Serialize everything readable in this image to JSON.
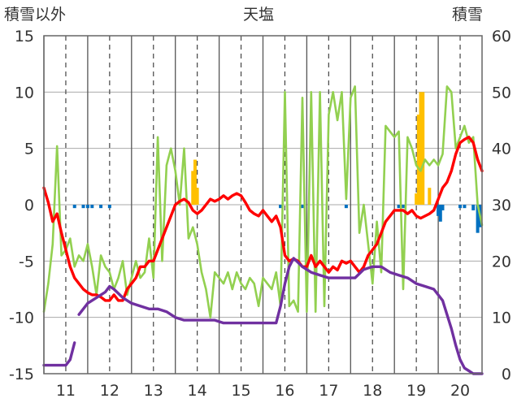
{
  "chart_data": {
    "type": "line",
    "title": "天塩",
    "ylabel_left": "積雪以外",
    "ylabel_right": "積雪",
    "y_left_lim": [
      -15,
      15
    ],
    "y_left_ticks": [
      15,
      10,
      5,
      0,
      -5,
      -10,
      -15
    ],
    "y_right_lim": [
      0,
      60
    ],
    "y_right_ticks": [
      60,
      50,
      40,
      30,
      20,
      10,
      0
    ],
    "x_lim": [
      10.5,
      20.5
    ],
    "x_ticks": [
      11,
      12,
      13,
      14,
      15,
      16,
      17,
      18,
      19,
      20
    ],
    "grid": true,
    "colors": {
      "temperature": "#ff0000",
      "humidity_like": "#92d050",
      "snow_depth": "#7030a0",
      "precip_positive": "#ffc000",
      "precip_negative": "#0070c0",
      "grid_solid": "#555555",
      "grid_dashed": "#444444"
    },
    "series": [
      {
        "axis": "left",
        "color": "#ff0000",
        "x": [
          10.5,
          10.6,
          10.7,
          10.8,
          10.9,
          11.0,
          11.1,
          11.2,
          11.3,
          11.4,
          11.5,
          11.6,
          11.7,
          11.8,
          11.9,
          12.0,
          12.1,
          12.2,
          12.3,
          12.4,
          12.5,
          12.6,
          12.7,
          12.8,
          12.9,
          13.0,
          13.1,
          13.2,
          13.3,
          13.4,
          13.5,
          13.6,
          13.7,
          13.8,
          13.9,
          14.0,
          14.1,
          14.2,
          14.3,
          14.4,
          14.5,
          14.6,
          14.7,
          14.8,
          14.9,
          15.0,
          15.1,
          15.2,
          15.3,
          15.4,
          15.5,
          15.6,
          15.7,
          15.8,
          15.9,
          16.0,
          16.1,
          16.2,
          16.3,
          16.4,
          16.5,
          16.6,
          16.7,
          16.8,
          16.9,
          17.0,
          17.1,
          17.2,
          17.3,
          17.4,
          17.5,
          17.6,
          17.7,
          17.8,
          17.9,
          18.0,
          18.1,
          18.2,
          18.3,
          18.4,
          18.5,
          18.6,
          18.7,
          18.8,
          18.9,
          19.0,
          19.1,
          19.2,
          19.3,
          19.4,
          19.5,
          19.6,
          19.7,
          19.8,
          19.9,
          20.0,
          20.1,
          20.2,
          20.3,
          20.4,
          20.5
        ],
        "y": [
          1.5,
          0.2,
          -1.5,
          -0.8,
          -2.5,
          -4.0,
          -5.5,
          -6.5,
          -7.0,
          -7.5,
          -7.8,
          -8.0,
          -8.0,
          -8.2,
          -8.5,
          -8.5,
          -8.0,
          -8.5,
          -8.5,
          -7.5,
          -7.0,
          -6.5,
          -5.5,
          -5.5,
          -5.0,
          -5.0,
          -4.0,
          -3.0,
          -2.0,
          -1.0,
          0.0,
          0.3,
          0.5,
          0.2,
          -0.5,
          -0.8,
          -0.5,
          0.0,
          0.5,
          0.3,
          0.5,
          0.8,
          0.5,
          0.8,
          1.0,
          0.8,
          0.2,
          -0.5,
          -0.8,
          -1.0,
          -0.5,
          -1.0,
          -1.5,
          -1.0,
          -2.0,
          -4.5,
          -5.0,
          -4.8,
          -5.0,
          -5.5,
          -5.5,
          -4.5,
          -5.5,
          -5.0,
          -5.5,
          -6.0,
          -5.5,
          -5.8,
          -5.0,
          -5.2,
          -5.0,
          -5.5,
          -6.0,
          -5.5,
          -4.5,
          -4.0,
          -3.5,
          -2.5,
          -1.5,
          -1.0,
          -0.5,
          -0.5,
          -0.5,
          -0.8,
          -0.5,
          -1.0,
          -1.2,
          -1.0,
          -0.8,
          -0.5,
          0.5,
          1.5,
          2.0,
          3.0,
          4.5,
          5.5,
          5.8,
          6.0,
          5.5,
          4.0,
          3.0
        ]
      },
      {
        "axis": "left",
        "color": "#92d050",
        "x": [
          10.5,
          10.6,
          10.7,
          10.8,
          10.9,
          11.0,
          11.1,
          11.2,
          11.3,
          11.4,
          11.5,
          11.6,
          11.7,
          11.8,
          11.9,
          12.0,
          12.1,
          12.2,
          12.3,
          12.4,
          12.5,
          12.6,
          12.7,
          12.8,
          12.9,
          13.0,
          13.1,
          13.2,
          13.3,
          13.4,
          13.5,
          13.6,
          13.7,
          13.8,
          13.9,
          14.0,
          14.1,
          14.2,
          14.3,
          14.4,
          14.5,
          14.6,
          14.7,
          14.8,
          14.9,
          15.0,
          15.1,
          15.2,
          15.3,
          15.4,
          15.5,
          15.6,
          15.7,
          15.8,
          15.9,
          16.0,
          16.1,
          16.2,
          16.3,
          16.4,
          16.5,
          16.6,
          16.7,
          16.8,
          16.9,
          17.0,
          17.1,
          17.2,
          17.3,
          17.4,
          17.5,
          17.6,
          17.7,
          17.8,
          17.9,
          18.0,
          18.1,
          18.2,
          18.3,
          18.4,
          18.5,
          18.6,
          18.7,
          18.8,
          18.9,
          19.0,
          19.1,
          19.2,
          19.3,
          19.4,
          19.5,
          19.6,
          19.7,
          19.8,
          19.9,
          20.0,
          20.1,
          20.2,
          20.3,
          20.4,
          20.5
        ],
        "y": [
          -9.5,
          -7.0,
          -3.5,
          5.2,
          -4.5,
          -4.0,
          -3.0,
          -5.5,
          -4.5,
          -5.0,
          -3.5,
          -5.5,
          -8.0,
          -4.5,
          -5.5,
          -6.0,
          -7.5,
          -6.5,
          -5.0,
          -8.0,
          -6.5,
          -5.0,
          -6.5,
          -6.0,
          -3.0,
          -6.5,
          6.0,
          -5.0,
          3.5,
          5.0,
          3.0,
          0.0,
          5.0,
          -3.0,
          -2.0,
          -3.5,
          -6.0,
          -7.5,
          -10.0,
          -6.0,
          -6.5,
          -7.0,
          -6.0,
          -7.5,
          -6.0,
          -7.0,
          -7.5,
          -6.5,
          -7.0,
          -9.0,
          -6.5,
          -7.0,
          -7.5,
          -6.0,
          -9.0,
          10.0,
          -9.0,
          -8.5,
          -9.5,
          9.5,
          -9.5,
          10.0,
          -9.5,
          10.0,
          -9.0,
          8.0,
          10.0,
          7.5,
          10.0,
          0.5,
          9.5,
          10.5,
          -2.5,
          0.0,
          -3.5,
          -7.0,
          -1.5,
          -6.0,
          7.0,
          6.5,
          6.0,
          6.5,
          -7.5,
          6.0,
          5.0,
          3.5,
          3.0,
          4.0,
          3.5,
          4.0,
          3.5,
          4.5,
          10.5,
          10.0,
          5.0,
          6.0,
          7.0,
          5.5,
          6.0,
          0.0,
          -1.8
        ]
      },
      {
        "axis": "right",
        "color": "#7030a0",
        "x": [
          10.5,
          10.8,
          11.0,
          11.1,
          11.2,
          11.25,
          11.3,
          11.5,
          11.7,
          11.9,
          12.0,
          12.1,
          12.3,
          12.5,
          12.7,
          12.9,
          13.1,
          13.3,
          13.5,
          13.7,
          13.9,
          14.0,
          14.2,
          14.4,
          14.6,
          14.8,
          15.0,
          15.2,
          15.4,
          15.6,
          15.8,
          15.9,
          16.0,
          16.1,
          16.2,
          16.4,
          16.6,
          16.8,
          17.0,
          17.2,
          17.4,
          17.6,
          17.8,
          18.0,
          18.2,
          18.4,
          18.6,
          18.8,
          19.0,
          19.2,
          19.4,
          19.6,
          19.8,
          19.9,
          20.0,
          20.1,
          20.2,
          20.3,
          20.4,
          20.5
        ],
        "y": [
          1.5,
          1.5,
          1.5,
          2.5,
          5.5,
          null,
          10.5,
          12.5,
          13.5,
          14.5,
          15.5,
          15.0,
          13.5,
          12.5,
          12.0,
          11.5,
          11.5,
          11.0,
          10.0,
          9.5,
          9.5,
          9.5,
          9.5,
          9.5,
          9.0,
          9.0,
          9.0,
          9.0,
          9.0,
          9.0,
          9.0,
          12.0,
          16.0,
          19.0,
          20.5,
          19.0,
          18.0,
          17.5,
          17.0,
          17.0,
          17.0,
          17.0,
          18.5,
          19.0,
          19.0,
          18.0,
          17.5,
          17.0,
          16.0,
          15.5,
          15.0,
          13.0,
          8.0,
          5.0,
          2.5,
          1.0,
          0.5,
          0.0,
          0.0,
          0.0
        ]
      }
    ],
    "bars": {
      "axis": "left",
      "x": [
        11.2,
        11.4,
        11.5,
        11.6,
        11.8,
        12.0,
        13.9,
        13.95,
        14.0,
        15.9,
        16.4,
        17.4,
        18.6,
        18.7,
        19.0,
        19.05,
        19.1,
        19.15,
        19.3,
        19.5,
        19.55,
        19.6,
        20.0,
        20.1,
        20.3,
        20.4,
        20.45
      ],
      "values": [
        -0.3,
        -0.3,
        -0.3,
        -0.3,
        -0.3,
        -0.3,
        3.0,
        4.0,
        1.5,
        -0.3,
        -0.3,
        -0.3,
        -0.3,
        -0.3,
        1.0,
        8.0,
        10.0,
        10.0,
        1.5,
        -1.0,
        -1.5,
        -0.5,
        -0.3,
        -0.3,
        -0.5,
        -2.5,
        -2.0
      ]
    }
  }
}
